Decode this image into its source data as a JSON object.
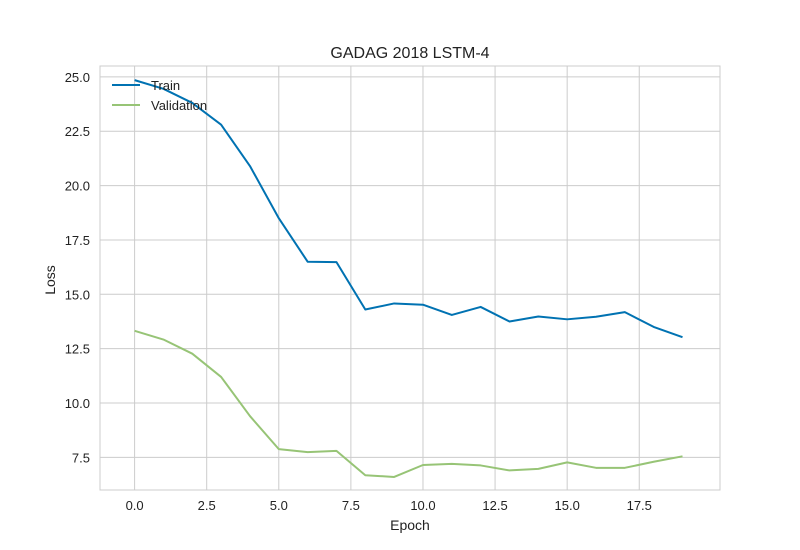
{
  "chart_data": {
    "type": "line",
    "title": "GADAG 2018 LSTM-4",
    "xlabel": "Epoch",
    "ylabel": "Loss",
    "xlim": [
      -1.2,
      20.3
    ],
    "ylim": [
      6.0,
      25.5
    ],
    "xticks": [
      0.0,
      2.5,
      5.0,
      7.5,
      10.0,
      12.5,
      15.0,
      17.5
    ],
    "yticks": [
      7.5,
      10.0,
      12.5,
      15.0,
      17.5,
      20.0,
      22.5,
      25.0
    ],
    "xtick_labels": [
      "0.0",
      "2.5",
      "5.0",
      "7.5",
      "10.0",
      "12.5",
      "15.0",
      "17.5"
    ],
    "ytick_labels": [
      "7.5",
      "10.0",
      "12.5",
      "15.0",
      "17.5",
      "20.0",
      "22.5",
      "25.0"
    ],
    "grid": true,
    "legend_position": "top-left",
    "x": [
      0,
      1,
      2,
      3,
      4,
      5,
      6,
      7,
      8,
      9,
      10,
      11,
      12,
      13,
      14,
      15,
      16,
      17,
      18,
      19
    ],
    "series": [
      {
        "name": "Train",
        "color": "#0072B2",
        "values": [
          24.85,
          24.45,
          23.8,
          22.8,
          20.9,
          18.5,
          16.5,
          16.48,
          14.3,
          14.58,
          14.52,
          14.05,
          14.42,
          13.75,
          13.98,
          13.85,
          13.97,
          14.18,
          13.5,
          13.03
        ]
      },
      {
        "name": "Validation",
        "color": "#97C476",
        "values": [
          13.32,
          12.92,
          12.27,
          11.2,
          9.4,
          7.88,
          7.74,
          7.8,
          6.68,
          6.6,
          7.15,
          7.2,
          7.13,
          6.9,
          6.97,
          7.27,
          7.02,
          7.02,
          7.3,
          7.55
        ]
      }
    ]
  }
}
